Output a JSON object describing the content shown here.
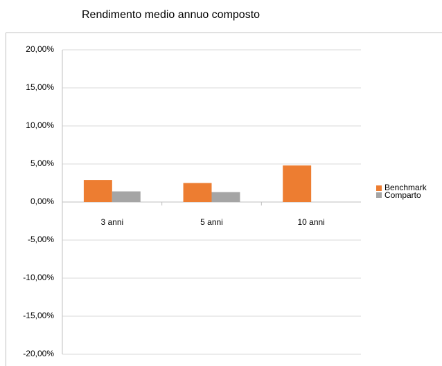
{
  "chart_data": {
    "type": "bar",
    "title": "Rendimento medio annuo composto",
    "categories": [
      "3 anni",
      "5 anni",
      "10 anni"
    ],
    "series": [
      {
        "name": "Benchmark",
        "color": "#ed7d31",
        "values": [
          2.9,
          2.5,
          4.8
        ]
      },
      {
        "name": "Comparto",
        "color": "#a5a5a5",
        "values": [
          1.4,
          1.3,
          null
        ]
      }
    ],
    "ylim": [
      -20,
      20
    ],
    "yticks": [
      {
        "value": -20,
        "label": "-20,00%"
      },
      {
        "value": -15,
        "label": "-15,00%"
      },
      {
        "value": -10,
        "label": "-10,00%"
      },
      {
        "value": -5,
        "label": "-5,00%"
      },
      {
        "value": 0,
        "label": "0,00%"
      },
      {
        "value": 5,
        "label": "5,00%"
      },
      {
        "value": 10,
        "label": "10,00%"
      },
      {
        "value": 15,
        "label": "15,00%"
      },
      {
        "value": 20,
        "label": "20,00%"
      }
    ],
    "grid": true,
    "legend": "right"
  }
}
